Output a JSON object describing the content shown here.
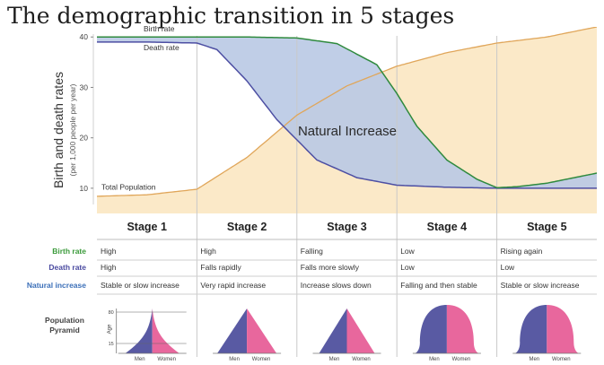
{
  "title": "The demographic transition in 5 stages",
  "chart_data": {
    "type": "area",
    "ylabel": "Birth and death rates",
    "ylabel_sub": "(per 1,000 people per year)",
    "xlabel": "",
    "ylim": [
      5,
      42
    ],
    "yticks": [
      10,
      20,
      30,
      40
    ],
    "x_categories": [
      "Stage 1",
      "Stage 2",
      "Stage 3",
      "Stage 4",
      "Stage 5"
    ],
    "x_domain": [
      0,
      5
    ],
    "grid": "vertical stage dividers",
    "annotation": "Natural Increase",
    "colors": {
      "birth_rate": "#2f8a3e",
      "death_rate": "#4d4fa3",
      "natural_increase_fill": "#b9c9e4",
      "total_population_line": "#e0a65a",
      "total_population_fill": "#fbe9c8",
      "birth_label": "#3a9a3a",
      "death_label": "#4a4aa0",
      "natural_label": "#3b6fb8",
      "pyramid_men": "#595aa3",
      "pyramid_women": "#e8679d"
    },
    "series": [
      {
        "name": "Birth rate",
        "x": [
          0,
          0.5,
          1,
          1.5,
          2,
          2.4,
          2.8,
          3.0,
          3.2,
          3.5,
          3.8,
          4.0,
          4.2,
          4.5,
          5.0
        ],
        "values": [
          40,
          40,
          40,
          40,
          39.8,
          38.7,
          34.5,
          28.8,
          22.3,
          15.6,
          11.8,
          10.1,
          10.3,
          11.0,
          13.0
        ]
      },
      {
        "name": "Death rate",
        "x": [
          0,
          0.5,
          1,
          1.2,
          1.5,
          1.8,
          2.2,
          2.6,
          3.0,
          3.5,
          4.0,
          4.5,
          5.0
        ],
        "values": [
          39,
          39,
          38.8,
          37.5,
          31.3,
          23.6,
          15.6,
          12.1,
          10.6,
          10.2,
          10.0,
          10.0,
          10.0
        ]
      },
      {
        "name": "Total Population",
        "x": [
          0,
          0.5,
          1,
          1.5,
          2,
          2.5,
          3,
          3.5,
          4,
          4.5,
          5.0
        ],
        "values": [
          8.4,
          8.7,
          9.8,
          16.1,
          24.5,
          30.3,
          34.2,
          36.9,
          38.8,
          40.0,
          42.0
        ]
      }
    ]
  },
  "table": {
    "rows": [
      {
        "label": "Birth rate",
        "cells": [
          "High",
          "High",
          "Falling",
          "Low",
          "Rising again"
        ]
      },
      {
        "label": "Death rate",
        "cells": [
          "High",
          "Falls rapidly",
          "Falls more slowly",
          "Low",
          "Low"
        ]
      },
      {
        "label": "Natural increase",
        "cells": [
          "Stable or slow increase",
          "Very rapid increase",
          "Increase slows down",
          "Falling and then stable",
          "Stable or slow increase"
        ]
      }
    ],
    "pyramid_row_label": [
      "Population",
      "Pyramid"
    ],
    "pyramid_axis_label": "Age",
    "pyramid_ticks": [
      "80",
      "15"
    ],
    "men_label": "Men",
    "women_label": "Women"
  }
}
